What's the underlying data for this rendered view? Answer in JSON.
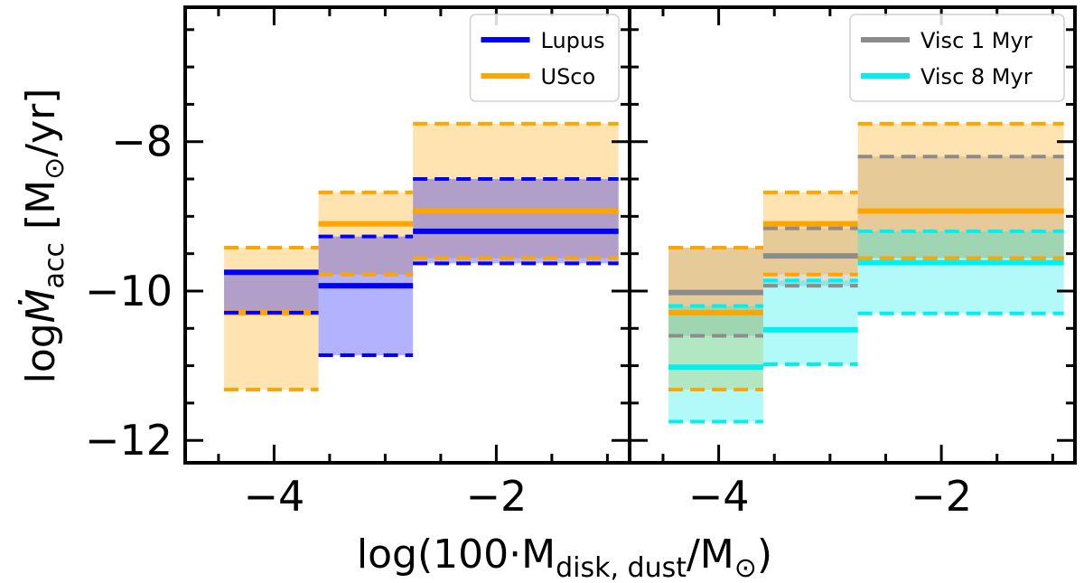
{
  "chart_data": {
    "type": "box-ranges",
    "xlabel": {
      "pre": "log(100·M",
      "sub": "disk, dust",
      "mid": "/M",
      "sym": "⊙",
      "post": ")"
    },
    "ylabel": {
      "pre": "log",
      "m": "Ṁ",
      "sub": "acc",
      "post": " [M",
      "sym": "⊙",
      "end": "/yr]"
    },
    "xlim": [
      -4.8,
      -0.8
    ],
    "ylim": [
      -12.3,
      -6.2
    ],
    "xticks": [
      -4,
      -2
    ],
    "yticks": [
      -12,
      -10,
      -8
    ],
    "xtick_labels": [
      "−4",
      "−2"
    ],
    "ytick_labels": [
      "−12",
      "−10",
      "−8"
    ],
    "colors": {
      "Lupus": "#0000ff",
      "USco": "#ffa500",
      "Visc 1 Myr": "#8c8c8c",
      "Visc 8 Myr": "#00f0f0"
    },
    "panels": [
      {
        "legend": [
          "Lupus",
          "USco"
        ],
        "legend_loc": "upper right",
        "series": [
          {
            "name": "USco",
            "bins": [
              {
                "x0": -4.45,
                "x1": -3.6,
                "median": -10.29,
                "lo": -11.32,
                "hi": -9.42
              },
              {
                "x0": -3.6,
                "x1": -2.75,
                "median": -9.1,
                "lo": -9.78,
                "hi": -8.68
              },
              {
                "x0": -2.75,
                "x1": -0.9,
                "median": -8.93,
                "lo": -9.56,
                "hi": -7.76
              }
            ]
          },
          {
            "name": "Lupus",
            "bins": [
              {
                "x0": -4.45,
                "x1": -3.6,
                "median": -9.75,
                "lo": -10.29,
                "hi": -9.75
              },
              {
                "x0": -3.6,
                "x1": -2.75,
                "median": -9.93,
                "lo": -10.86,
                "hi": -9.27
              },
              {
                "x0": -2.75,
                "x1": -0.9,
                "median": -9.2,
                "lo": -9.63,
                "hi": -8.5
              }
            ]
          }
        ]
      },
      {
        "legend": [
          "Visc 1 Myr",
          "Visc 8 Myr"
        ],
        "legend_loc": "upper right",
        "series": [
          {
            "name": "Visc 1 Myr",
            "bins": [
              {
                "x0": -4.45,
                "x1": -3.6,
                "median": -10.02,
                "lo": -10.6,
                "hi": -9.42
              },
              {
                "x0": -3.6,
                "x1": -2.75,
                "median": -9.53,
                "lo": -9.93,
                "hi": -9.16
              },
              {
                "x0": -2.75,
                "x1": -0.9,
                "median": -8.93,
                "lo": -9.56,
                "hi": -8.2
              }
            ]
          },
          {
            "name": "USco",
            "bins": [
              {
                "x0": -4.45,
                "x1": -3.6,
                "median": -10.29,
                "lo": -11.32,
                "hi": -9.42
              },
              {
                "x0": -3.6,
                "x1": -2.75,
                "median": -9.1,
                "lo": -9.78,
                "hi": -8.68
              },
              {
                "x0": -2.75,
                "x1": -0.9,
                "median": -8.93,
                "lo": -9.56,
                "hi": -7.76
              }
            ]
          },
          {
            "name": "Visc 8 Myr",
            "bins": [
              {
                "x0": -4.45,
                "x1": -3.6,
                "median": -11.02,
                "lo": -11.75,
                "hi": -10.2
              },
              {
                "x0": -3.6,
                "x1": -2.75,
                "median": -10.52,
                "lo": -10.98,
                "hi": -9.86
              },
              {
                "x0": -2.75,
                "x1": -0.9,
                "median": -9.62,
                "lo": -10.3,
                "hi": -9.2
              }
            ]
          }
        ]
      }
    ]
  }
}
